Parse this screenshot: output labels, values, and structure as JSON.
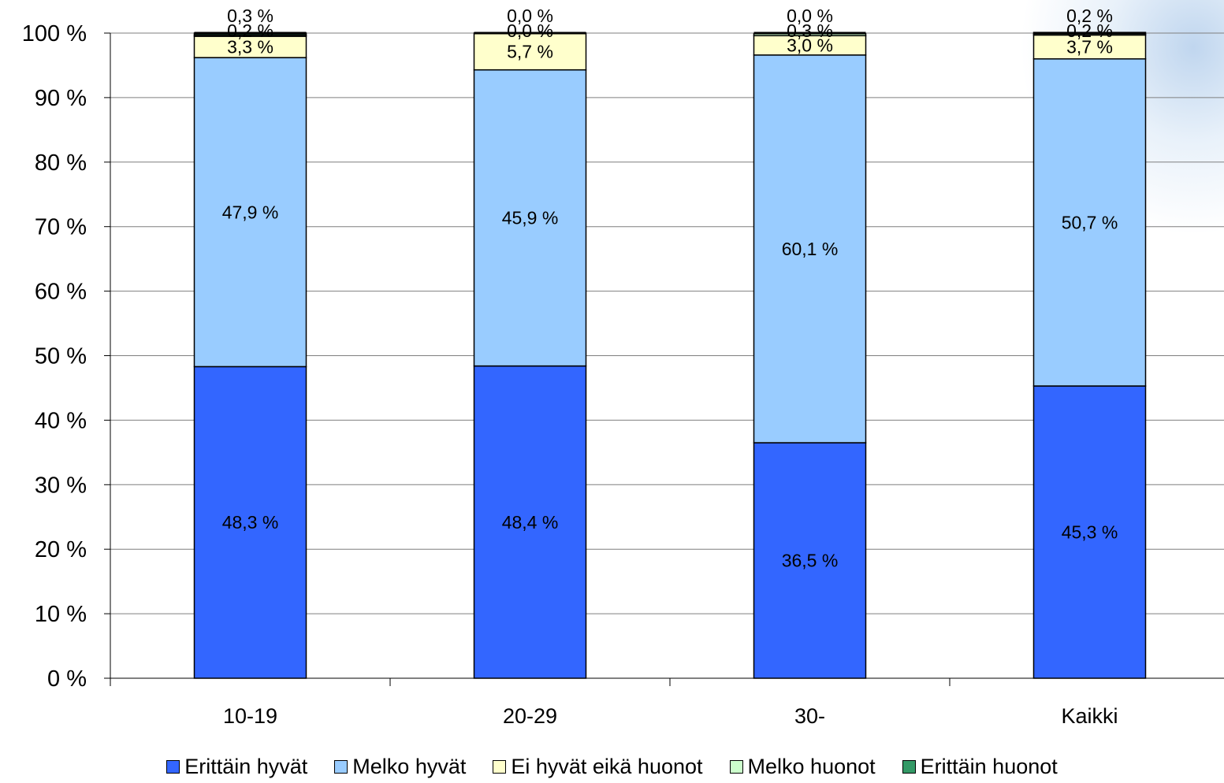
{
  "chart_data": {
    "type": "bar",
    "stacked": true,
    "normalized": true,
    "title": "",
    "xlabel": "",
    "ylabel": "",
    "ylim": [
      0,
      100
    ],
    "yticks": [
      "0 %",
      "10 %",
      "20 %",
      "30 %",
      "40 %",
      "50 %",
      "60 %",
      "70 %",
      "80 %",
      "90 %",
      "100 %"
    ],
    "categories": [
      "10-19",
      "20-29",
      "30-",
      "Kaikki"
    ],
    "series": [
      {
        "name": "Erittäin hyvät",
        "color": "#3366ff",
        "values": [
          48.3,
          48.4,
          36.5,
          45.3
        ],
        "labels": [
          "48,3 %",
          "48,4 %",
          "36,5 %",
          "45,3 %"
        ]
      },
      {
        "name": "Melko hyvät",
        "color": "#99ccff",
        "values": [
          47.9,
          45.9,
          60.1,
          50.7
        ],
        "labels": [
          "47,9 %",
          "45,9 %",
          "60,1 %",
          "50,7 %"
        ]
      },
      {
        "name": "Ei hyvät eikä huonot",
        "color": "#ffffcc",
        "values": [
          3.3,
          5.7,
          3.0,
          3.7
        ],
        "labels": [
          "3,3 %",
          "5,7 %",
          "3,0 %",
          "3,7 %"
        ]
      },
      {
        "name": "Melko huonot",
        "color": "#ccffcc",
        "values": [
          0.2,
          0.0,
          0.3,
          0.2
        ],
        "labels": [
          "0,2 %",
          "0,0 %",
          "0,3 %",
          "0,2 %"
        ]
      },
      {
        "name": "Erittäin huonot",
        "color": "#339966",
        "values": [
          0.3,
          0.0,
          0.0,
          0.2
        ],
        "labels": [
          "0,3 %",
          "0,0 %",
          "0,0 %",
          "0,2 %"
        ]
      }
    ],
    "grid": true,
    "legend_position": "bottom"
  }
}
